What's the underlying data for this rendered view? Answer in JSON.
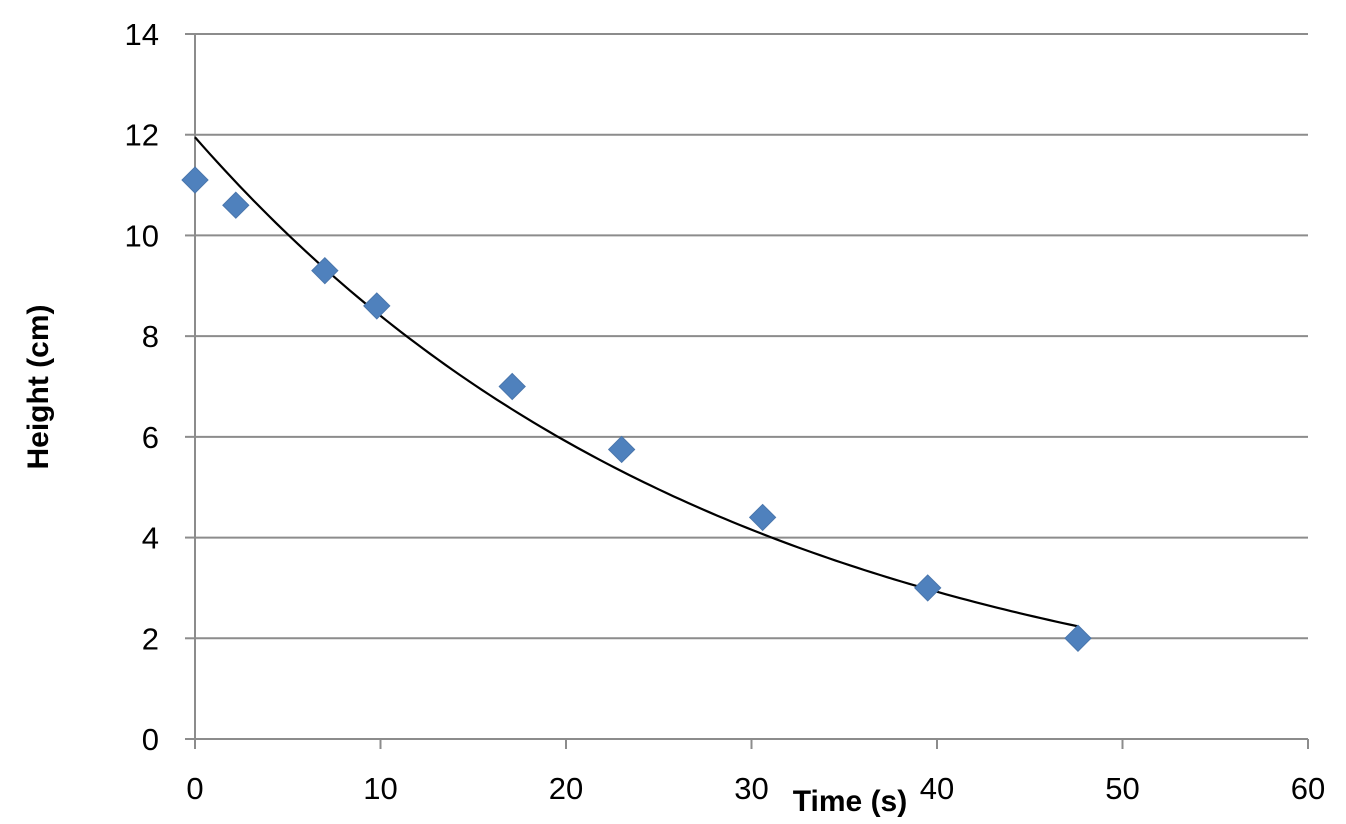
{
  "chart_data": {
    "type": "scatter",
    "title": "",
    "xlabel": "Time (s)",
    "ylabel": "Height (cm)",
    "xlim": [
      0,
      60
    ],
    "ylim": [
      0,
      14
    ],
    "x_ticks": [
      0,
      10,
      20,
      30,
      40,
      50,
      60
    ],
    "y_ticks": [
      0,
      2,
      4,
      6,
      8,
      10,
      12,
      14
    ],
    "grid": "horizontal",
    "legend": "none",
    "marker": "diamond",
    "marker_color": "#4F81BD",
    "series": [
      {
        "x": [
          0,
          2.2,
          7,
          9.8,
          17.1,
          23,
          30.6,
          39.5,
          47.6
        ],
        "y": [
          11.1,
          10.6,
          9.3,
          8.6,
          7.0,
          5.75,
          4.4,
          3.0,
          2.0
        ]
      }
    ],
    "trendline": {
      "type": "exponential",
      "color": "#000000",
      "a": 11.95,
      "b": -0.0352,
      "x_range": [
        0,
        47.6
      ]
    }
  }
}
